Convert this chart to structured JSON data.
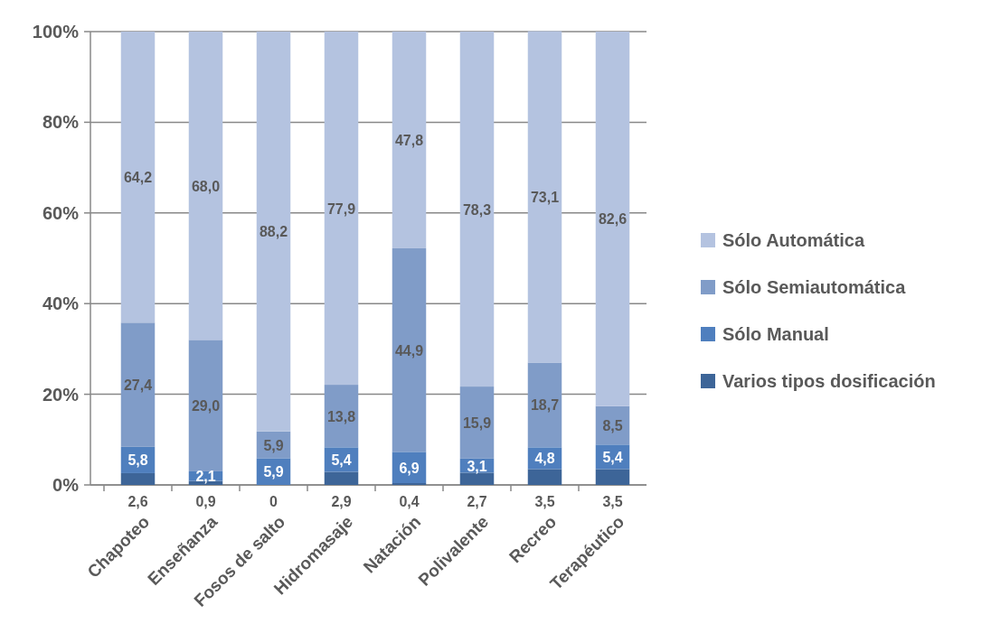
{
  "chart_data": {
    "type": "bar",
    "stacked": true,
    "categories": [
      "Chapoteo",
      "Enseñanza",
      "Fosos de salto",
      "Hidromasaje",
      "Natación",
      "Polivalente",
      "Recreo",
      "Terapéutico"
    ],
    "series": [
      {
        "name": "Varios tipos dosificación",
        "color": "#3d6598",
        "values": [
          2.6,
          0.9,
          0,
          2.9,
          0.4,
          2.7,
          3.5,
          3.5
        ],
        "value_labels": [
          "2,6",
          "0,9",
          "0",
          "2,9",
          "0,4",
          "2,7",
          "3,5",
          "3,5"
        ]
      },
      {
        "name": "Sólo Manual",
        "color": "#4f7fbe",
        "values": [
          5.8,
          2.1,
          5.9,
          5.4,
          6.9,
          3.1,
          4.8,
          5.4
        ],
        "value_labels": [
          "5,8",
          "2,1",
          "5,9",
          "5,4",
          "6,9",
          "3,1",
          "4,8",
          "5,4"
        ]
      },
      {
        "name": "Sólo Semiautomática",
        "color": "#809cc8",
        "values": [
          27.4,
          29.0,
          5.9,
          13.8,
          44.9,
          15.9,
          18.7,
          8.5
        ],
        "value_labels": [
          "27,4",
          "29,0",
          "5,9",
          "13,8",
          "44,9",
          "15,9",
          "18,7",
          "8,5"
        ]
      },
      {
        "name": "Sólo Automática",
        "color": "#b4c3e0",
        "values": [
          64.2,
          68.0,
          88.2,
          77.9,
          47.8,
          78.3,
          73.1,
          82.6
        ],
        "value_labels": [
          "64,2",
          "68,0",
          "88,2",
          "77,9",
          "47,8",
          "78,3",
          "73,1",
          "82,6"
        ]
      }
    ],
    "ylim": [
      0,
      100
    ],
    "yticks": [
      {
        "value": 0,
        "label": "0%"
      },
      {
        "value": 20,
        "label": "20%"
      },
      {
        "value": 40,
        "label": "40%"
      },
      {
        "value": 60,
        "label": "60%"
      },
      {
        "value": 80,
        "label": "80%"
      },
      {
        "value": 100,
        "label": "100%"
      }
    ],
    "grid": "y",
    "legend": "right"
  }
}
